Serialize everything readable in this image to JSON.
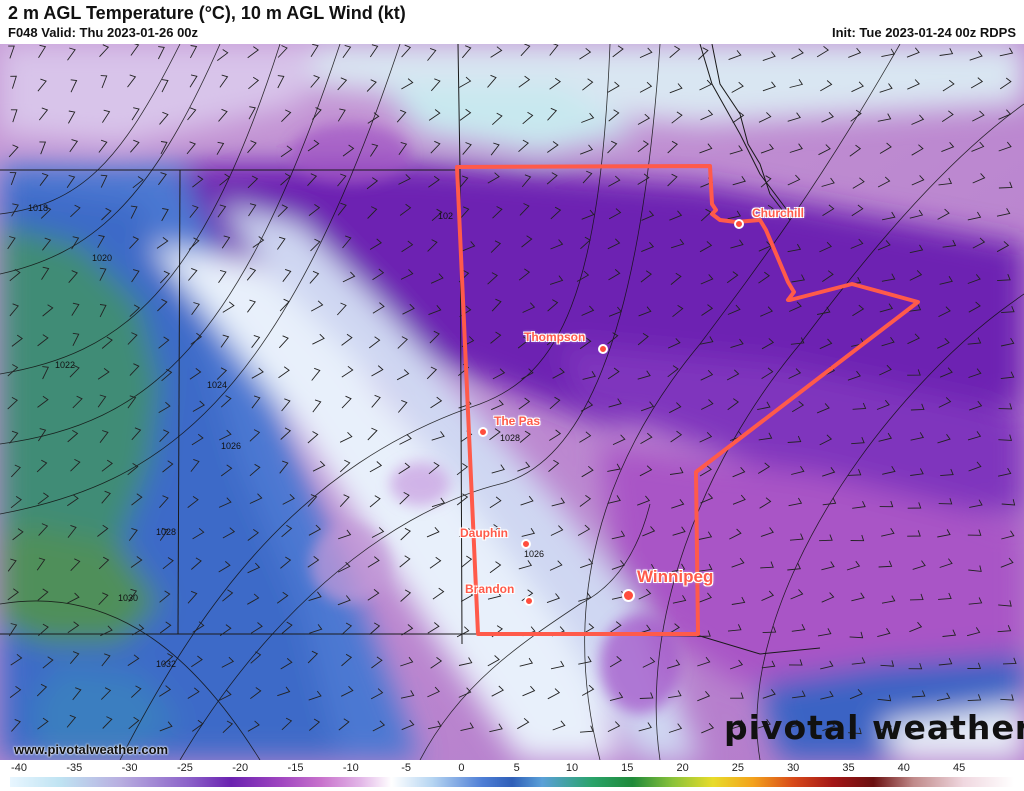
{
  "header": {
    "title": "2 m AGL Temperature (°C), 10 m AGL Wind (kt)",
    "valid": "F048 Valid: Thu 2023-01-26 00z",
    "init": "Init: Tue 2023-01-24 00z RDPS"
  },
  "cities": [
    {
      "name": "Churchill",
      "lon": -94.2,
      "lat": 58.8
    },
    {
      "name": "Thompson",
      "lon": -97.9,
      "lat": 55.7
    },
    {
      "name": "The Pas",
      "lon": -101.2,
      "lat": 53.8
    },
    {
      "name": "Dauphin",
      "lon": -100.1,
      "lat": 51.1
    },
    {
      "name": "Brandon",
      "lon": -99.9,
      "lat": 49.8
    },
    {
      "name": "Winnipeg",
      "lon": -97.1,
      "lat": 49.9
    }
  ],
  "isobars": [
    "1018",
    "1020",
    "1022",
    "1024",
    "1026",
    "1028",
    "1030",
    "1032",
    "102",
    "1028",
    "1026"
  ],
  "colorbar": {
    "units": "°C",
    "ticks": [
      "-40",
      "-35",
      "-30",
      "-25",
      "-20",
      "-15",
      "-10",
      "-5",
      "0",
      "5",
      "10",
      "15",
      "20",
      "25",
      "30",
      "35",
      "40",
      "45"
    ]
  },
  "footer": {
    "website": "www.pivotalweather.com",
    "brand": "pivotal weather"
  },
  "colors": {
    "province_outline": "#ff5a4a",
    "city_label": "#ff5a4a"
  }
}
